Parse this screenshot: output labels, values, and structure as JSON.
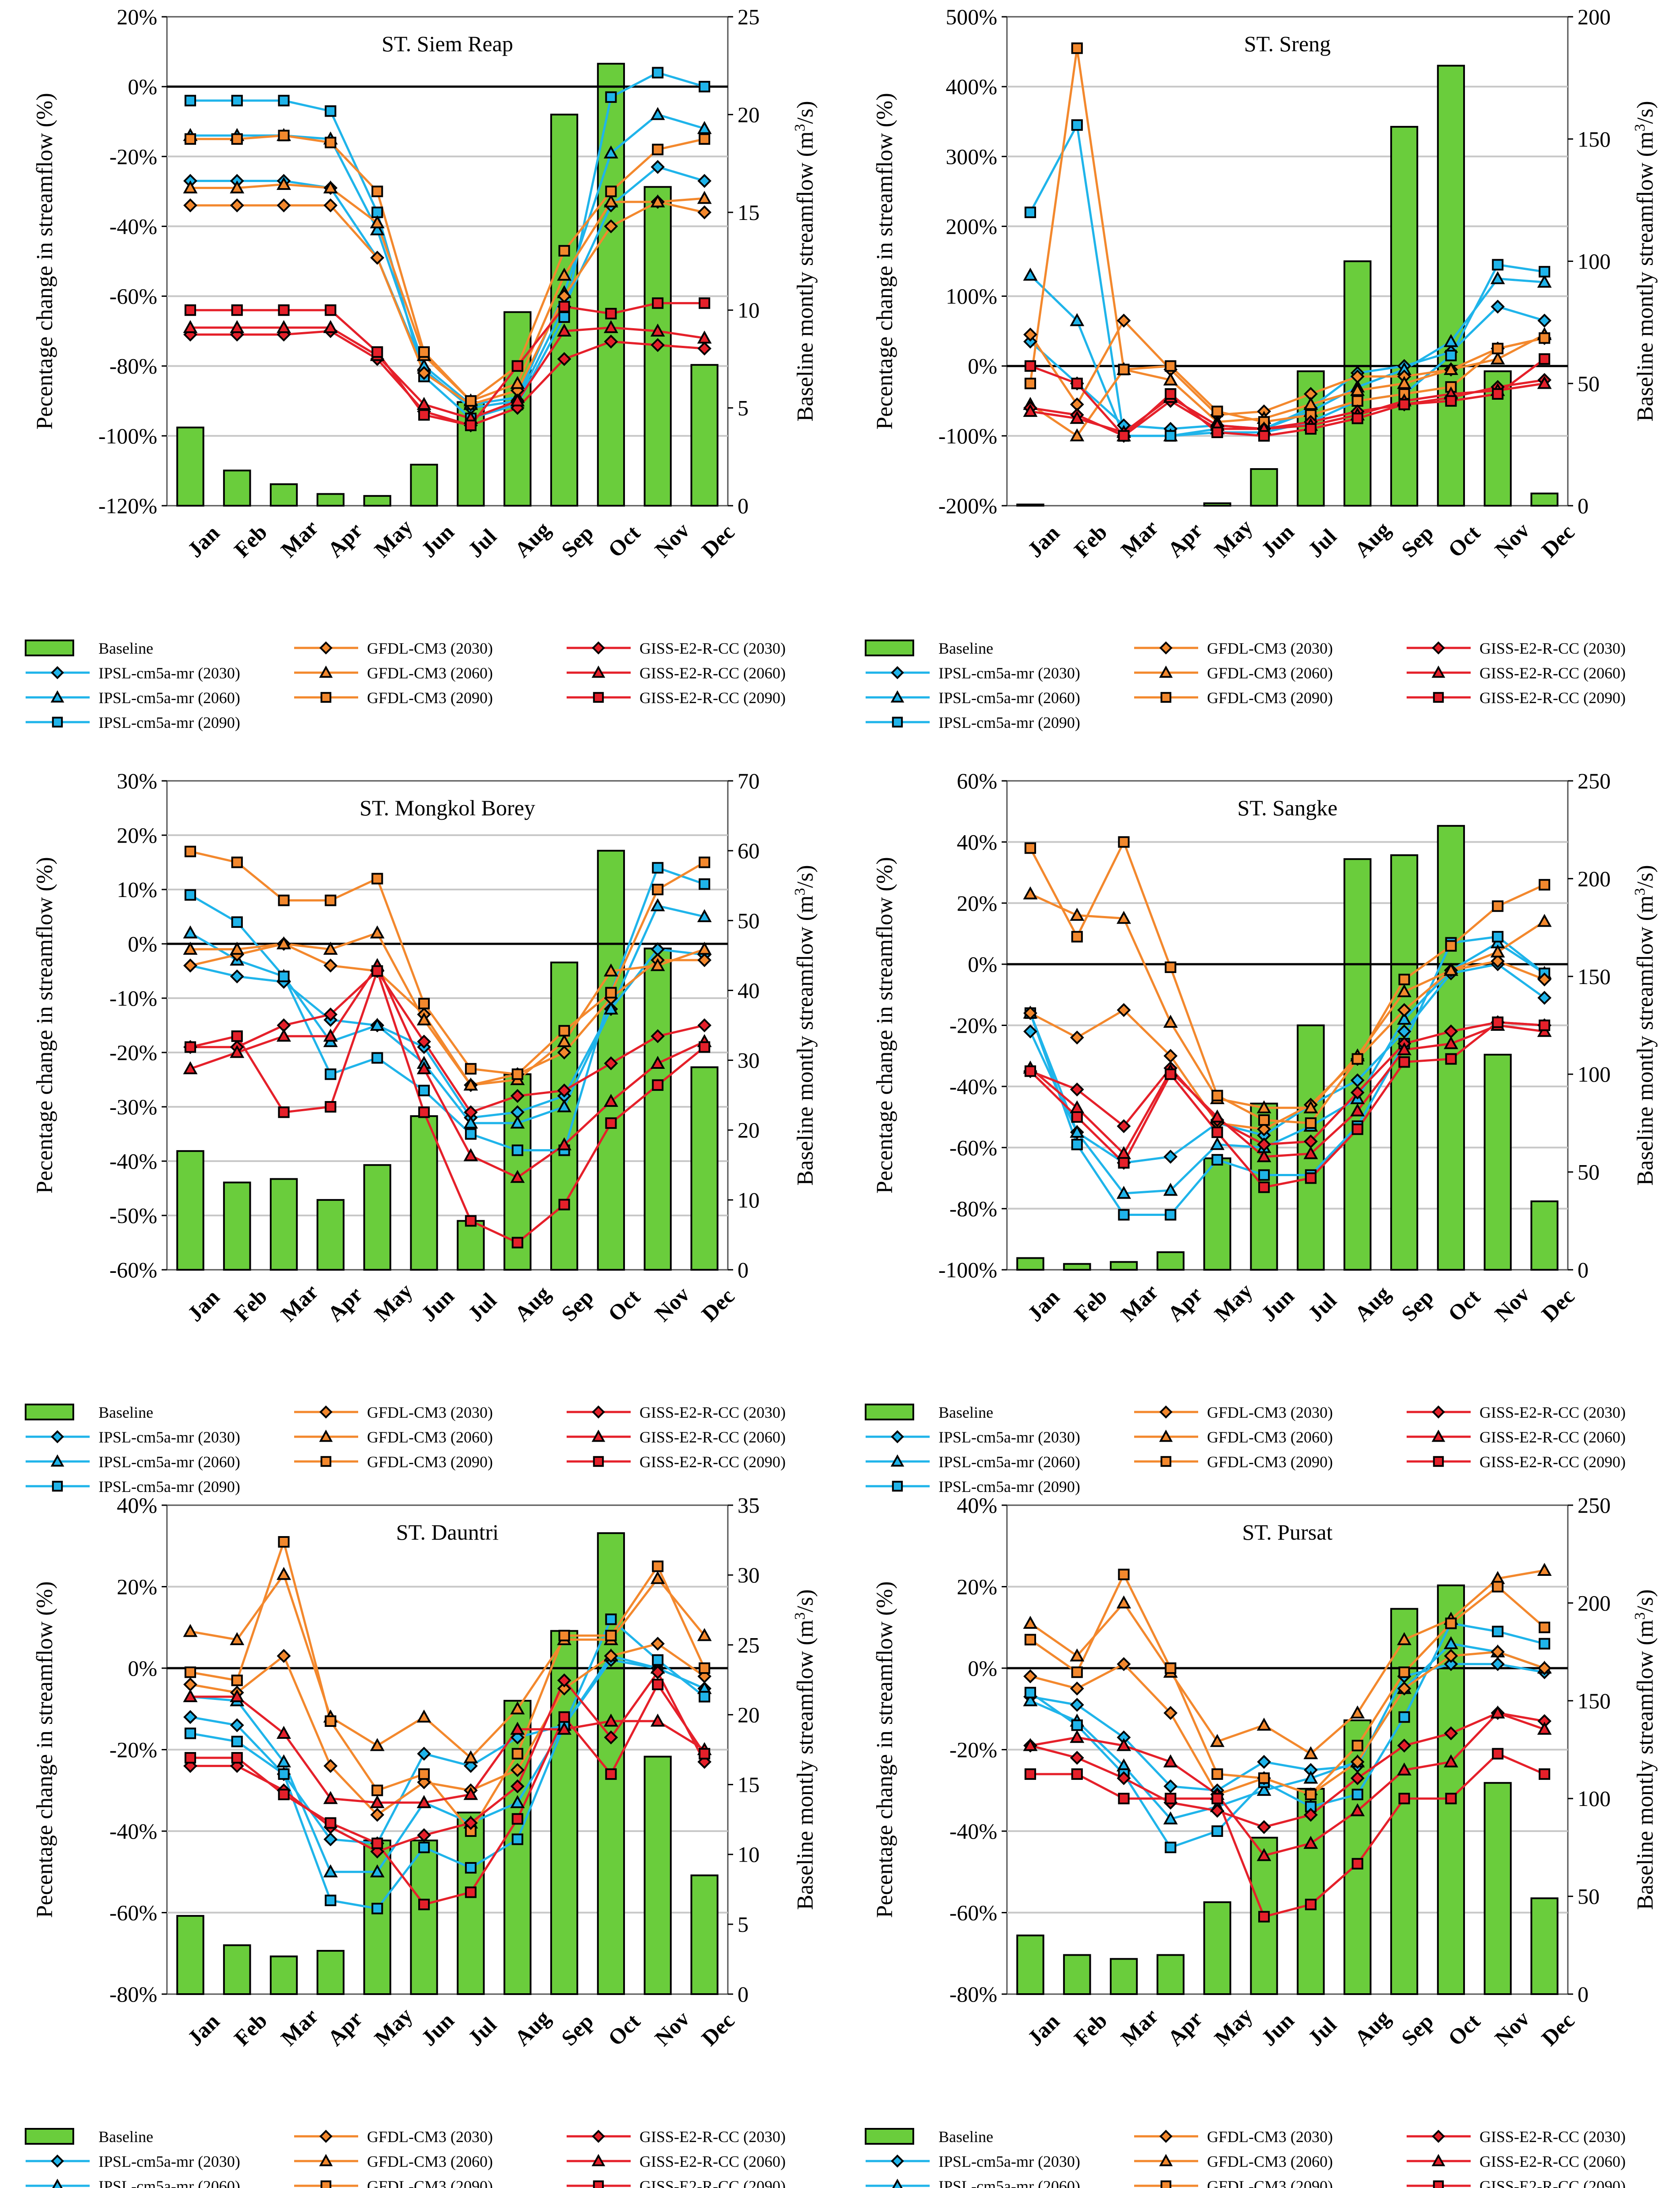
{
  "months": [
    "Jan",
    "Feb",
    "Mar",
    "Apr",
    "May",
    "Jun",
    "Jul",
    "Aug",
    "Sep",
    "Oct",
    "Nov",
    "Dec"
  ],
  "legend": [
    {
      "key": "baseline",
      "label": "Baseline"
    },
    {
      "key": "gfdl2030",
      "label": "GFDL-CM3 (2030)"
    },
    {
      "key": "giss2030",
      "label": "GISS-E2-R-CC (2030)"
    },
    {
      "key": "ipsl2030",
      "label": "IPSL-cm5a-mr (2030)"
    },
    {
      "key": "gfdl2060",
      "label": "GFDL-CM3 (2060)"
    },
    {
      "key": "giss2060",
      "label": "GISS-E2-R-CC (2060)"
    },
    {
      "key": "ipsl2060",
      "label": "IPSL-cm5a-mr (2060)"
    },
    {
      "key": "gfdl2090",
      "label": "GFDL-CM3 (2090)"
    },
    {
      "key": "giss2090",
      "label": "GISS-E2-R-CC (2090)"
    },
    {
      "key": "ipsl2090",
      "label": "IPSL-cm5a-mr (2090)"
    }
  ],
  "series_styles": {
    "baseline": {
      "color": "#6ACD3C",
      "marker": "bar"
    },
    "ipsl2030": {
      "color": "#1FB4EA",
      "marker": "diamond"
    },
    "ipsl2060": {
      "color": "#1FB4EA",
      "marker": "triangle"
    },
    "ipsl2090": {
      "color": "#1FB4EA",
      "marker": "square"
    },
    "gfdl2030": {
      "color": "#F3882D",
      "marker": "diamond"
    },
    "gfdl2060": {
      "color": "#F3882D",
      "marker": "triangle"
    },
    "gfdl2090": {
      "color": "#F3882D",
      "marker": "square"
    },
    "giss2030": {
      "color": "#E5202A",
      "marker": "diamond"
    },
    "giss2060": {
      "color": "#E5202A",
      "marker": "triangle"
    },
    "giss2090": {
      "color": "#E5202A",
      "marker": "square"
    }
  },
  "y_left_label": "Pecentage change in streamflow (%)",
  "y_right_label_prefix": "Baseline montly streamflow (m",
  "y_right_label_sup": "3",
  "y_right_label_suffix": "/s)",
  "chart_data": [
    {
      "type": "bar+line",
      "title": "ST. Siem Reap",
      "ylim_left": [
        -120,
        20
      ],
      "left_step": 20,
      "ylim_right": [
        0,
        25
      ],
      "right_step": 5,
      "categories": [
        "Jan",
        "Feb",
        "Mar",
        "Apr",
        "May",
        "Jun",
        "Jul",
        "Aug",
        "Sep",
        "Oct",
        "Nov",
        "Dec"
      ],
      "baseline": [
        4.0,
        1.8,
        1.1,
        0.6,
        0.5,
        2.1,
        5.3,
        9.9,
        20.0,
        22.6,
        16.3,
        7.2
      ],
      "series": {
        "ipsl2030": [
          -27,
          -27,
          -27,
          -29,
          -49,
          -81,
          -92,
          -90,
          -63,
          -34,
          -23,
          -27
        ],
        "ipsl2060": [
          -14,
          -14,
          -14,
          -15,
          -41,
          -80,
          -91,
          -89,
          -59,
          -19,
          -8,
          -12
        ],
        "ipsl2090": [
          -4,
          -4,
          -4,
          -7,
          -36,
          -83,
          -95,
          -91,
          -66,
          -3,
          4,
          0
        ],
        "gfdl2030": [
          -34,
          -34,
          -34,
          -34,
          -49,
          -82,
          -91,
          -87,
          -60,
          -40,
          -33,
          -36
        ],
        "gfdl2060": [
          -29,
          -29,
          -28,
          -29,
          -39,
          -77,
          -90,
          -85,
          -54,
          -33,
          -33,
          -32
        ],
        "gfdl2090": [
          -15,
          -15,
          -14,
          -16,
          -30,
          -76,
          -90,
          -80,
          -47,
          -30,
          -18,
          -15
        ],
        "giss2030": [
          -71,
          -71,
          -71,
          -70,
          -78,
          -93,
          -97,
          -92,
          -78,
          -73,
          -74,
          -75
        ],
        "giss2060": [
          -69,
          -69,
          -69,
          -69,
          -77,
          -91,
          -95,
          -90,
          -70,
          -69,
          -70,
          -72
        ],
        "giss2090": [
          -64,
          -64,
          -64,
          -64,
          -76,
          -94,
          -97,
          -80,
          -63,
          -65,
          -62,
          -62
        ]
      }
    },
    {
      "type": "bar+line",
      "title": "ST. Sreng",
      "ylim_left": [
        -200,
        500
      ],
      "left_step": 100,
      "ylim_right": [
        0,
        200
      ],
      "right_step": 50,
      "categories": [
        "Jan",
        "Feb",
        "Mar",
        "Apr",
        "May",
        "Jun",
        "Jul",
        "Aug",
        "Sep",
        "Oct",
        "Nov",
        "Dec"
      ],
      "baseline": [
        0.5,
        0,
        0,
        0,
        1,
        15,
        55,
        100,
        155,
        180,
        55,
        5
      ],
      "series": {
        "ipsl2030": [
          35,
          -25,
          -85,
          -90,
          -85,
          -90,
          -60,
          -10,
          0,
          20,
          85,
          65
        ],
        "ipsl2060": [
          130,
          65,
          -100,
          -100,
          -90,
          -90,
          -65,
          -30,
          -5,
          35,
          125,
          120
        ],
        "ipsl2090": [
          220,
          345,
          -100,
          -100,
          -95,
          -95,
          -80,
          -50,
          -40,
          15,
          145,
          135
        ],
        "gfdl2030": [
          45,
          -55,
          65,
          -5,
          -70,
          -65,
          -40,
          -15,
          -15,
          -5,
          25,
          40
        ],
        "gfdl2060": [
          -55,
          -100,
          -5,
          -20,
          -80,
          -75,
          -55,
          -35,
          -25,
          -5,
          10,
          45
        ],
        "gfdl2090": [
          -25,
          455,
          -5,
          0,
          -65,
          -80,
          -70,
          -50,
          -40,
          -30,
          25,
          40
        ],
        "giss2030": [
          -60,
          -70,
          -100,
          -50,
          -90,
          -90,
          -80,
          -65,
          -55,
          -45,
          -30,
          -20
        ],
        "giss2060": [
          -65,
          -75,
          -95,
          -45,
          -85,
          -90,
          -85,
          -70,
          -50,
          -40,
          -35,
          -25
        ],
        "giss2090": [
          0,
          -25,
          -100,
          -40,
          -95,
          -100,
          -90,
          -75,
          -55,
          -50,
          -40,
          10
        ]
      }
    },
    {
      "type": "bar+line",
      "title": "ST. Mongkol Borey",
      "ylim_left": [
        -60,
        30
      ],
      "left_step": 10,
      "ylim_right": [
        0,
        70
      ],
      "right_step": 10,
      "categories": [
        "Jan",
        "Feb",
        "Mar",
        "Apr",
        "May",
        "Jun",
        "Jul",
        "Aug",
        "Sep",
        "Oct",
        "Nov",
        "Dec"
      ],
      "baseline": [
        17,
        12.5,
        13,
        10,
        15,
        22,
        7,
        28,
        44,
        60,
        46,
        29
      ],
      "series": {
        "ipsl2030": [
          -4,
          -6,
          -7,
          -14,
          -15,
          -19,
          -32,
          -31,
          -28,
          -12,
          -1,
          -2
        ],
        "ipsl2060": [
          2,
          -3,
          -6,
          -18,
          -15,
          -22,
          -33,
          -33,
          -30,
          -12,
          7,
          5
        ],
        "ipsl2090": [
          9,
          4,
          -6,
          -24,
          -21,
          -27,
          -35,
          -38,
          -38,
          -9,
          14,
          11
        ],
        "gfdl2030": [
          -4,
          -2,
          0,
          -4,
          -5,
          -13,
          -26,
          -24,
          -20,
          -10,
          -3,
          -3
        ],
        "gfdl2060": [
          -1,
          -1,
          0,
          -1,
          2,
          -14,
          -26,
          -25,
          -18,
          -5,
          -4,
          -1
        ],
        "gfdl2090": [
          17,
          15,
          8,
          8,
          12,
          -11,
          -23,
          -24,
          -16,
          -9,
          10,
          15
        ],
        "giss2030": [
          -19,
          -19,
          -15,
          -13,
          -5,
          -18,
          -31,
          -28,
          -27,
          -22,
          -17,
          -15
        ],
        "giss2060": [
          -23,
          -20,
          -17,
          -17,
          -4,
          -23,
          -39,
          -43,
          -37,
          -29,
          -22,
          -18
        ],
        "giss2090": [
          -19,
          -17,
          -31,
          -30,
          -5,
          -31,
          -51,
          -55,
          -48,
          -33,
          -26,
          -19
        ]
      }
    },
    {
      "type": "bar+line",
      "title": "ST. Sangke",
      "ylim_left": [
        -100,
        60
      ],
      "left_step": 20,
      "ylim_right": [
        0,
        250
      ],
      "right_step": 50,
      "categories": [
        "Jan",
        "Feb",
        "Mar",
        "Apr",
        "May",
        "Jun",
        "Jul",
        "Aug",
        "Sep",
        "Oct",
        "Nov",
        "Dec"
      ],
      "baseline": [
        6,
        3,
        4,
        9,
        57,
        85,
        125,
        210,
        212,
        227,
        110,
        35
      ],
      "series": {
        "ipsl2030": [
          -22,
          -55,
          -65,
          -63,
          -52,
          -56,
          -46,
          -38,
          -22,
          -3,
          0,
          -11
        ],
        "ipsl2060": [
          -16,
          -55,
          -75,
          -74,
          -59,
          -60,
          -53,
          -44,
          -18,
          -2,
          7,
          -3
        ],
        "ipsl2090": [
          -16,
          -59,
          -82,
          -82,
          -64,
          -69,
          -69,
          -53,
          -26,
          7,
          9,
          -3
        ],
        "gfdl2030": [
          -16,
          -24,
          -15,
          -30,
          -52,
          -54,
          -46,
          -31,
          -15,
          -2,
          1,
          -5
        ],
        "gfdl2060": [
          23,
          16,
          15,
          -19,
          -44,
          -47,
          -47,
          -30,
          -9,
          -2,
          4,
          14
        ],
        "gfdl2090": [
          38,
          9,
          40,
          -1,
          -43,
          -51,
          -52,
          -31,
          -5,
          6,
          19,
          26
        ],
        "giss2030": [
          -35,
          -41,
          -53,
          -34,
          -51,
          -59,
          -58,
          -42,
          -26,
          -22,
          -19,
          -20
        ],
        "giss2060": [
          -34,
          -47,
          -62,
          -35,
          -50,
          -63,
          -62,
          -48,
          -28,
          -26,
          -20,
          -22
        ],
        "giss2090": [
          -35,
          -50,
          -65,
          -36,
          -55,
          -73,
          -70,
          -54,
          -32,
          -31,
          -19,
          -20
        ]
      }
    },
    {
      "type": "bar+line",
      "title": "ST. Dauntri",
      "ylim_left": [
        -80,
        40
      ],
      "left_step": 20,
      "ylim_right": [
        0,
        35
      ],
      "right_step": 5,
      "categories": [
        "Jan",
        "Feb",
        "Mar",
        "Apr",
        "May",
        "Jun",
        "Jul",
        "Aug",
        "Sep",
        "Oct",
        "Nov",
        "Dec"
      ],
      "baseline": [
        5.6,
        3.5,
        2.7,
        3.1,
        11,
        11,
        13,
        21,
        26,
        33,
        17,
        8.5
      ],
      "series": {
        "ipsl2030": [
          -12,
          -14,
          -26,
          -42,
          -43,
          -21,
          -24,
          -17,
          -14,
          2,
          0,
          -5
        ],
        "ipsl2060": [
          -7,
          -8,
          -23,
          -50,
          -50,
          -33,
          -38,
          -33,
          -14,
          3,
          0,
          -5
        ],
        "ipsl2090": [
          -16,
          -18,
          -26,
          -57,
          -59,
          -44,
          -49,
          -42,
          -14,
          12,
          2,
          -7
        ],
        "gfdl2030": [
          -4,
          -6,
          3,
          -24,
          -36,
          -28,
          -30,
          -25,
          -5,
          3,
          6,
          -2
        ],
        "gfdl2060": [
          9,
          7,
          23,
          -12,
          -19,
          -12,
          -22,
          -10,
          7,
          7,
          22,
          8
        ],
        "gfdl2090": [
          -1,
          -3,
          31,
          -13,
          -30,
          -26,
          -40,
          -21,
          8,
          8,
          25,
          0
        ],
        "giss2030": [
          -24,
          -24,
          -30,
          -39,
          -45,
          -41,
          -38,
          -29,
          -3,
          -17,
          -1,
          -23
        ],
        "giss2060": [
          -7,
          -7,
          -16,
          -32,
          -33,
          -33,
          -31,
          -15,
          -15,
          -13,
          -13,
          -20
        ],
        "giss2090": [
          -22,
          -22,
          -31,
          -38,
          -43,
          -58,
          -55,
          -37,
          -12,
          -26,
          -4,
          -21
        ]
      }
    },
    {
      "type": "bar+line",
      "title": "ST. Pursat",
      "ylim_left": [
        -80,
        40
      ],
      "left_step": 20,
      "ylim_right": [
        0,
        250
      ],
      "right_step": 50,
      "categories": [
        "Jan",
        "Feb",
        "Mar",
        "Apr",
        "May",
        "Jun",
        "Jul",
        "Aug",
        "Sep",
        "Oct",
        "Nov",
        "Dec"
      ],
      "baseline": [
        30,
        20,
        18,
        20,
        47,
        80,
        105,
        140,
        197,
        209,
        108,
        49
      ],
      "series": {
        "ipsl2030": [
          -7,
          -9,
          -17,
          -29,
          -30,
          -23,
          -25,
          -24,
          -2,
          1,
          1,
          -1
        ],
        "ipsl2060": [
          -8,
          -13,
          -24,
          -37,
          -34,
          -30,
          -27,
          -23,
          -5,
          6,
          4,
          0
        ],
        "ipsl2090": [
          -6,
          -14,
          -26,
          -44,
          -40,
          -28,
          -34,
          -31,
          -12,
          11,
          9,
          6
        ],
        "gfdl2030": [
          -2,
          -5,
          1,
          -11,
          -31,
          -27,
          -31,
          -23,
          -5,
          3,
          4,
          0
        ],
        "gfdl2060": [
          11,
          3,
          16,
          -1,
          -18,
          -14,
          -21,
          -11,
          7,
          12,
          22,
          24
        ],
        "gfdl2090": [
          7,
          -1,
          23,
          0,
          -26,
          -27,
          -31,
          -19,
          -1,
          11,
          20,
          10
        ],
        "giss2030": [
          -19,
          -22,
          -27,
          -33,
          -35,
          -39,
          -36,
          -27,
          -19,
          -16,
          -11,
          -13
        ],
        "giss2060": [
          -19,
          -17,
          -19,
          -23,
          -31,
          -46,
          -43,
          -35,
          -25,
          -23,
          -11,
          -15
        ],
        "giss2090": [
          -26,
          -26,
          -32,
          -32,
          -32,
          -61,
          -58,
          -48,
          -32,
          -32,
          -21,
          -26
        ]
      }
    }
  ]
}
